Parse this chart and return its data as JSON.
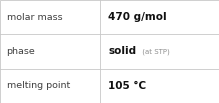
{
  "rows": [
    {
      "label": "molar mass",
      "value_bold": "470 g/mol",
      "value_small": ""
    },
    {
      "label": "phase",
      "value_bold": "solid",
      "value_small": " (at STP)"
    },
    {
      "label": "melting point",
      "value_bold": "105 °C",
      "value_small": ""
    }
  ],
  "background_color": "#ffffff",
  "border_color": "#c8c8c8",
  "label_color": "#404040",
  "value_color": "#111111",
  "small_color": "#909090",
  "label_fontsize": 6.8,
  "value_fontsize": 7.5,
  "small_fontsize": 5.0,
  "col_split": 0.455,
  "fig_width": 2.19,
  "fig_height": 1.03,
  "dpi": 100
}
